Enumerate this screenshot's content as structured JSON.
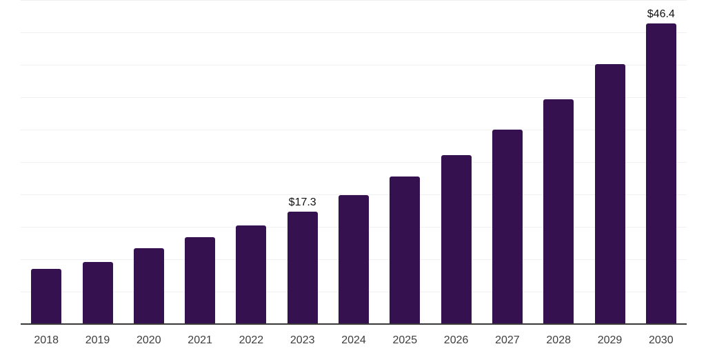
{
  "chart_data": {
    "type": "bar",
    "categories": [
      "2018",
      "2019",
      "2020",
      "2021",
      "2022",
      "2023",
      "2024",
      "2025",
      "2026",
      "2027",
      "2028",
      "2029",
      "2030"
    ],
    "values": [
      8.5,
      9.6,
      11.7,
      13.4,
      15.2,
      17.3,
      19.9,
      22.8,
      26.1,
      30.0,
      34.7,
      40.1,
      46.4
    ],
    "bar_labels": [
      "",
      "",
      "",
      "",
      "",
      "$17.3",
      "",
      "",
      "",
      "",
      "",
      "",
      "$46.4"
    ],
    "title": "",
    "xlabel": "",
    "ylabel": "",
    "ylim": [
      0,
      50
    ],
    "gridline_step": 5,
    "grid": "horizontal",
    "legend_position": "none",
    "colors": {
      "bar": "#36114F",
      "gridline": "#F0F0F0",
      "axis_line": "#383838",
      "tick_label": "#3D3D3D",
      "bar_label": "#111111",
      "background": "#FFFFFF"
    }
  }
}
